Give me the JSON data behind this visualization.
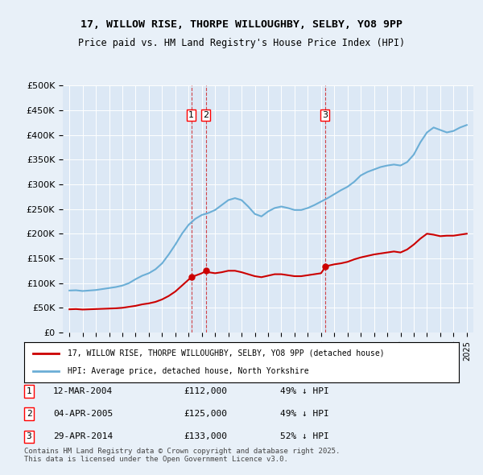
{
  "title": "17, WILLOW RISE, THORPE WILLOUGHBY, SELBY, YO8 9PP",
  "subtitle": "Price paid vs. HM Land Registry's House Price Index (HPI)",
  "legend_line1": "17, WILLOW RISE, THORPE WILLOUGHBY, SELBY, YO8 9PP (detached house)",
  "legend_line2": "HPI: Average price, detached house, North Yorkshire",
  "footer": "Contains HM Land Registry data © Crown copyright and database right 2025.\nThis data is licensed under the Open Government Licence v3.0.",
  "transactions": [
    {
      "id": 1,
      "date": "12-MAR-2004",
      "price": 112000,
      "pct": "49%",
      "x": 2004.2
    },
    {
      "id": 2,
      "date": "04-APR-2005",
      "price": 125000,
      "pct": "49%",
      "x": 2005.3
    },
    {
      "id": 3,
      "date": "29-APR-2014",
      "price": 133000,
      "pct": "52%",
      "x": 2014.3
    }
  ],
  "hpi_color": "#6baed6",
  "price_color": "#cc0000",
  "background_color": "#e8f0f8",
  "plot_bg_color": "#dce8f5",
  "ylim": [
    0,
    500000
  ],
  "yticks": [
    0,
    50000,
    100000,
    150000,
    200000,
    250000,
    300000,
    350000,
    400000,
    450000,
    500000
  ],
  "xlim": [
    1994.5,
    2025.5
  ],
  "hpi_data": {
    "years": [
      1995,
      1995.5,
      1996,
      1996.5,
      1997,
      1997.5,
      1998,
      1998.5,
      1999,
      1999.5,
      2000,
      2000.5,
      2001,
      2001.5,
      2002,
      2002.5,
      2003,
      2003.5,
      2004,
      2004.5,
      2005,
      2005.5,
      2006,
      2006.5,
      2007,
      2007.5,
      2008,
      2008.5,
      2009,
      2009.5,
      2010,
      2010.5,
      2011,
      2011.5,
      2012,
      2012.5,
      2013,
      2013.5,
      2014,
      2014.5,
      2015,
      2015.5,
      2016,
      2016.5,
      2017,
      2017.5,
      2018,
      2018.5,
      2019,
      2019.5,
      2020,
      2020.5,
      2021,
      2021.5,
      2022,
      2022.5,
      2023,
      2023.5,
      2024,
      2024.5,
      2025
    ],
    "values": [
      85000,
      85500,
      84000,
      85000,
      86000,
      88000,
      90000,
      92000,
      95000,
      100000,
      108000,
      115000,
      120000,
      128000,
      140000,
      158000,
      178000,
      200000,
      218000,
      230000,
      238000,
      242000,
      248000,
      258000,
      268000,
      272000,
      268000,
      255000,
      240000,
      235000,
      245000,
      252000,
      255000,
      252000,
      248000,
      248000,
      252000,
      258000,
      265000,
      272000,
      280000,
      288000,
      295000,
      305000,
      318000,
      325000,
      330000,
      335000,
      338000,
      340000,
      338000,
      345000,
      360000,
      385000,
      405000,
      415000,
      410000,
      405000,
      408000,
      415000,
      420000
    ]
  },
  "price_data": {
    "years": [
      1995,
      1995.5,
      1996,
      1996.5,
      1997,
      1997.5,
      1998,
      1998.5,
      1999,
      1999.5,
      2000,
      2000.5,
      2001,
      2001.5,
      2002,
      2002.5,
      2003,
      2003.5,
      2004,
      2004.25,
      2004.5,
      2005,
      2005.33,
      2005.5,
      2006,
      2006.5,
      2007,
      2007.5,
      2008,
      2008.5,
      2009,
      2009.5,
      2010,
      2010.5,
      2011,
      2011.5,
      2012,
      2012.5,
      2013,
      2013.5,
      2014,
      2014.33,
      2014.5,
      2015,
      2015.5,
      2016,
      2016.5,
      2017,
      2017.5,
      2018,
      2018.5,
      2019,
      2019.5,
      2020,
      2020.5,
      2021,
      2021.5,
      2022,
      2022.5,
      2023,
      2023.5,
      2024,
      2024.5,
      2025
    ],
    "values": [
      47000,
      47500,
      46500,
      47000,
      47500,
      48000,
      48500,
      49000,
      50000,
      52000,
      54000,
      57000,
      59000,
      62000,
      67000,
      74000,
      83000,
      95000,
      107000,
      112000,
      115000,
      120000,
      125000,
      122000,
      120000,
      122000,
      125000,
      125000,
      122000,
      118000,
      114000,
      112000,
      115000,
      118000,
      118000,
      116000,
      114000,
      114000,
      116000,
      118000,
      120000,
      133000,
      135000,
      138000,
      140000,
      143000,
      148000,
      152000,
      155000,
      158000,
      160000,
      162000,
      164000,
      162000,
      168000,
      178000,
      190000,
      200000,
      198000,
      195000,
      196000,
      196000,
      198000,
      200000
    ]
  }
}
